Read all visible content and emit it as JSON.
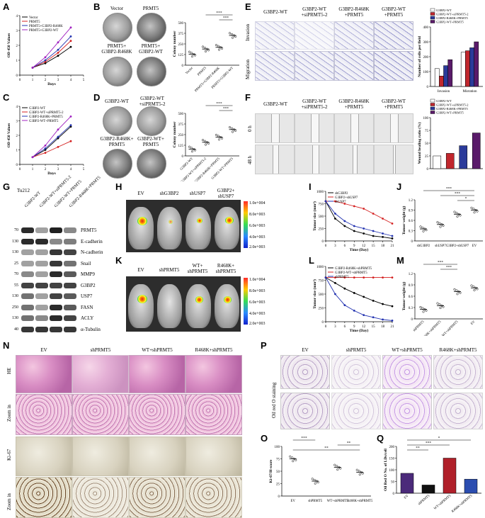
{
  "panels": [
    "A",
    "B",
    "C",
    "D",
    "E",
    "F",
    "G",
    "H",
    "I",
    "J",
    "K",
    "L",
    "M",
    "N",
    "O",
    "P",
    "Q"
  ],
  "panelA": {
    "legend": [
      "Vector",
      "PRMT5",
      "PRMT5+G3BP2-R468K",
      "PRMT5+G3BP2-WT"
    ],
    "sig": [
      "*",
      "*"
    ]
  },
  "panelB": {
    "dish_labels": [
      "Vector",
      "PRMT5",
      "PRMT5+\nG3BP2-R468K",
      "PRMT5+\nG3BP2-WT"
    ],
    "sig": [
      "***",
      "***"
    ]
  },
  "panelC": {
    "legend": [
      "G3BP2-WT",
      "G3BP2-WT+siPRMT5-2",
      "G3BP2-R468K+PRMT5",
      "G3BP2-WT+PRMT5"
    ],
    "sig": [
      "***",
      "**",
      "**"
    ]
  },
  "panelD": {
    "dish_labels": [
      "G3BP2-WT",
      "G3BP2-WT\n+siPRMT5-2",
      "G3BP2-R468K+\nPRMT5",
      "G3BP2-WT+\nPRMT5"
    ],
    "sig": [
      "***",
      "***"
    ]
  },
  "panelE": {
    "col_labels": [
      "G3BP2-WT",
      "G3BP2-WT\n+siPRMT5-2",
      "G3BP2-R468K\n+PRMT5",
      "G3BP2-WT\n+PRMT5"
    ],
    "row_labels": [
      "Invasion",
      "Migration"
    ],
    "legend": [
      "G3BP2-WT",
      "G3BP2-WT+siPRMT5-2",
      "G3BP2-R468K+PRMT5",
      "G3BP2-WT+PRMT5"
    ],
    "sig": [
      "***",
      "***",
      "***",
      "***"
    ]
  },
  "panelF": {
    "col_labels": [
      "G3BP2-WT",
      "G3BP2-WT\n+siPRMT5-2",
      "G3BP2-R468K\n+PRMT5",
      "G3BP2-WT\n+PRMT5"
    ],
    "row_labels": [
      "0 h",
      "48 h"
    ],
    "legend": [
      "G3BP2-WT",
      "G3BP2-WT+siPRMT5-2",
      "G3BP2-R468K+PRMT5",
      "G3BP2-WT+PRMT5"
    ],
    "sig": [
      "***",
      "**"
    ]
  },
  "panelG": {
    "cell_line": "Tu212",
    "lanes": [
      "G3BP2-WT",
      "G3BP2-WT+siPRMT5-2",
      "G3BP2-WT+PRMT5",
      "G3BP2-R468K+PRMT5"
    ],
    "markers": [
      "70",
      "130",
      "130",
      "25",
      "70",
      "55",
      "130",
      "250",
      "130",
      "40"
    ],
    "proteins": [
      "PRMT5",
      "E-cadherin",
      "N-cadherin",
      "Snail",
      "MMP9",
      "G3BP2",
      "USP7",
      "FASN",
      "ACLY",
      "α-Tubulin"
    ]
  },
  "panelH": {
    "labels": [
      "EV",
      "shG3BP2",
      "shUSP7",
      "G3BP2+\nshUSP7"
    ],
    "scale": [
      "1.0e+004",
      "8.0e+003",
      "6.0e+003",
      "4.0e+003",
      "2.0e+003"
    ]
  },
  "panelI": {
    "legend": [
      "shG3BP2",
      "G3BP2+shUSP7",
      "shUSP7"
    ],
    "sig": [
      "*",
      "*"
    ]
  },
  "panelJ": {
    "sig": [
      "***",
      "***",
      "*",
      "*"
    ]
  },
  "panelK": {
    "labels": [
      "EV",
      "shPRMT5",
      "WT+\nshPRMT5",
      "R468K+\nshPRMT5"
    ],
    "scale": [
      "1.0e+004",
      "8.0e+003",
      "6.0e+003",
      "4.0e+003",
      "2.0e+003"
    ]
  },
  "panelL": {
    "legend": [
      "G3BP2-R468K+shPRMT5",
      "G3BP2-WT+shPRMT5",
      "shPRMT5"
    ],
    "sig": [
      "***",
      "*"
    ]
  },
  "panelM": {
    "sig": [
      "***",
      "***",
      "*"
    ]
  },
  "panelN": {
    "cols": [
      "EV",
      "shPRMT5",
      "WT+shPRMT5",
      "R468K+shPRMT5"
    ],
    "rows": [
      "HE",
      "Zoom in",
      "Ki-67",
      "Zoom in"
    ]
  },
  "panelO": {
    "sig": [
      "***",
      "**",
      "**"
    ]
  },
  "panelP": {
    "cols": [
      "EV",
      "shPRMT5",
      "WT+shPRMT5",
      "R468K+shPRMT5"
    ],
    "row_label": "Oil red O staining"
  },
  "panelQ": {
    "sig": [
      "*",
      "***",
      "**"
    ]
  },
  "chart_data": [
    {
      "id": "A",
      "type": "line",
      "xlabel": "Days",
      "ylabel": "OD 450 Values",
      "x": [
        1,
        2,
        3,
        4
      ],
      "xlim": [
        0,
        5
      ],
      "ylim": [
        0,
        4
      ],
      "series": [
        {
          "name": "Vector",
          "values": [
            0.5,
            0.8,
            1.3,
            1.9
          ]
        },
        {
          "name": "PRMT5",
          "values": [
            0.5,
            0.9,
            1.5,
            2.3
          ]
        },
        {
          "name": "PRMT5+G3BP2-R468K",
          "values": [
            0.5,
            1.0,
            1.7,
            2.6
          ]
        },
        {
          "name": "PRMT5+G3BP2-WT",
          "values": [
            0.5,
            1.2,
            2.2,
            3.2
          ]
        }
      ]
    },
    {
      "id": "B",
      "type": "scatter",
      "ylabel": "Colony number",
      "ylim": [
        0,
        500
      ],
      "categories": [
        "Vector",
        "PRMT5",
        "PRMT5+G3BP2-R468K",
        "PRMT5+G3BP2-WT"
      ],
      "values": [
        130,
        190,
        210,
        350
      ]
    },
    {
      "id": "C",
      "type": "line",
      "xlabel": "Days",
      "ylabel": "OD 450 Values",
      "x": [
        1,
        2,
        3,
        4
      ],
      "xlim": [
        0,
        5
      ],
      "ylim": [
        0,
        4
      ],
      "series": [
        {
          "name": "G3BP2-WT",
          "values": [
            0.5,
            1.0,
            1.8,
            2.6
          ]
        },
        {
          "name": "G3BP2-WT+siPRMT5-2",
          "values": [
            0.5,
            0.8,
            1.2,
            1.6
          ]
        },
        {
          "name": "G3BP2-R468K+PRMT5",
          "values": [
            0.5,
            1.1,
            1.9,
            2.7
          ]
        },
        {
          "name": "G3BP2-WT+PRMT5",
          "values": [
            0.5,
            1.3,
            2.4,
            3.3
          ]
        }
      ]
    },
    {
      "id": "D",
      "type": "scatter",
      "ylabel": "Colony number",
      "ylim": [
        0,
        500
      ],
      "categories": [
        "G3BP2-WT",
        "G3BP2-WT+siPRMT5-2",
        "G3BP2-R468K+PRMT5",
        "G3BP2-WT+PRMT5"
      ],
      "values": [
        80,
        160,
        220,
        310
      ]
    },
    {
      "id": "E",
      "type": "bar",
      "ylabel": "Number of cells per field",
      "ylim": [
        0,
        400
      ],
      "categories": [
        "Invasion",
        "Migration"
      ],
      "series": [
        {
          "name": "G3BP2-WT",
          "values": [
            120,
            230
          ]
        },
        {
          "name": "G3BP2-WT+siPRMT5-2",
          "values": [
            70,
            240
          ]
        },
        {
          "name": "G3BP2-R468K+PRMT5",
          "values": [
            140,
            260
          ]
        },
        {
          "name": "G3BP2-WT+PRMT5",
          "values": [
            180,
            300
          ]
        }
      ]
    },
    {
      "id": "F",
      "type": "bar",
      "ylabel": "Wound healing ratio (%)",
      "ylim": [
        0,
        100
      ],
      "categories": [
        "G3BP2-WT",
        "G3BP2-WT+siPRMT5-2",
        "G3BP2-R468K+PRMT5",
        "G3BP2-WT+PRMT5"
      ],
      "values": [
        25,
        30,
        45,
        70
      ]
    },
    {
      "id": "I",
      "type": "line",
      "xlabel": "Time (Day)",
      "ylabel": "Tumor size (mm³)",
      "x": [
        0,
        3,
        6,
        9,
        12,
        15,
        18,
        21
      ],
      "xlim": [
        0,
        21
      ],
      "ylim": [
        0,
        1000
      ],
      "series": [
        {
          "name": "shG3BP2",
          "values": [
            800,
            450,
            300,
            200,
            150,
            100,
            80,
            50
          ]
        },
        {
          "name": "G3BP2+shUSP7",
          "values": [
            800,
            800,
            750,
            700,
            650,
            550,
            450,
            350
          ]
        },
        {
          "name": "shUSP7",
          "values": [
            800,
            550,
            400,
            300,
            250,
            200,
            150,
            100
          ]
        }
      ]
    },
    {
      "id": "J",
      "type": "scatter",
      "ylabel": "Tumor weight (g)",
      "ylim": [
        0,
        1.2
      ],
      "categories": [
        "shG3BP2",
        "shUSP7",
        "G3BP2+shUSP7",
        "EV"
      ],
      "values": [
        0.35,
        0.48,
        0.78,
        0.9
      ]
    },
    {
      "id": "L",
      "type": "line",
      "xlabel": "Time (Day)",
      "ylabel": "Tumor size (mm³)",
      "x": [
        0,
        3,
        6,
        9,
        12,
        15,
        18,
        21
      ],
      "xlim": [
        0,
        21
      ],
      "ylim": [
        0,
        1000
      ],
      "series": [
        {
          "name": "G3BP2-R468K+shPRMT5",
          "values": [
            800,
            700,
            600,
            520,
            450,
            380,
            320,
            280
          ]
        },
        {
          "name": "G3BP2-WT+shPRMT5",
          "values": [
            800,
            800,
            800,
            800,
            800,
            800,
            800,
            800
          ]
        },
        {
          "name": "shPRMT5",
          "values": [
            800,
            500,
            300,
            200,
            120,
            80,
            40,
            20
          ]
        }
      ]
    },
    {
      "id": "M",
      "type": "scatter",
      "ylabel": "Tumor weight (g)",
      "ylim": [
        0,
        1.2
      ],
      "categories": [
        "shPRMT5",
        "G3BP2-R468K+shPRMT5",
        "G3BP2-WT+shPRMT5",
        "EV"
      ],
      "values": [
        0.25,
        0.35,
        0.72,
        0.82
      ]
    },
    {
      "id": "O",
      "type": "scatter",
      "ylabel": "Ki-67/H-score",
      "ylim": [
        0,
        100
      ],
      "categories": [
        "EV",
        "shPRMT5",
        "WT+shPRMT5",
        "R468K+shPRMT5"
      ],
      "values": [
        75,
        30,
        58,
        48
      ]
    },
    {
      "id": "Q",
      "type": "bar",
      "ylabel": "Oil Red O No. of LDs/cell",
      "ylim": [
        0,
        200
      ],
      "categories": [
        "EV",
        "shPRMT5",
        "WT+shPRMT5",
        "R468K+shPRMT5"
      ],
      "values": [
        85,
        35,
        150,
        60
      ],
      "colors": [
        "#4b2a7a",
        "#111111",
        "#b0202a",
        "#2b4db0"
      ]
    }
  ]
}
